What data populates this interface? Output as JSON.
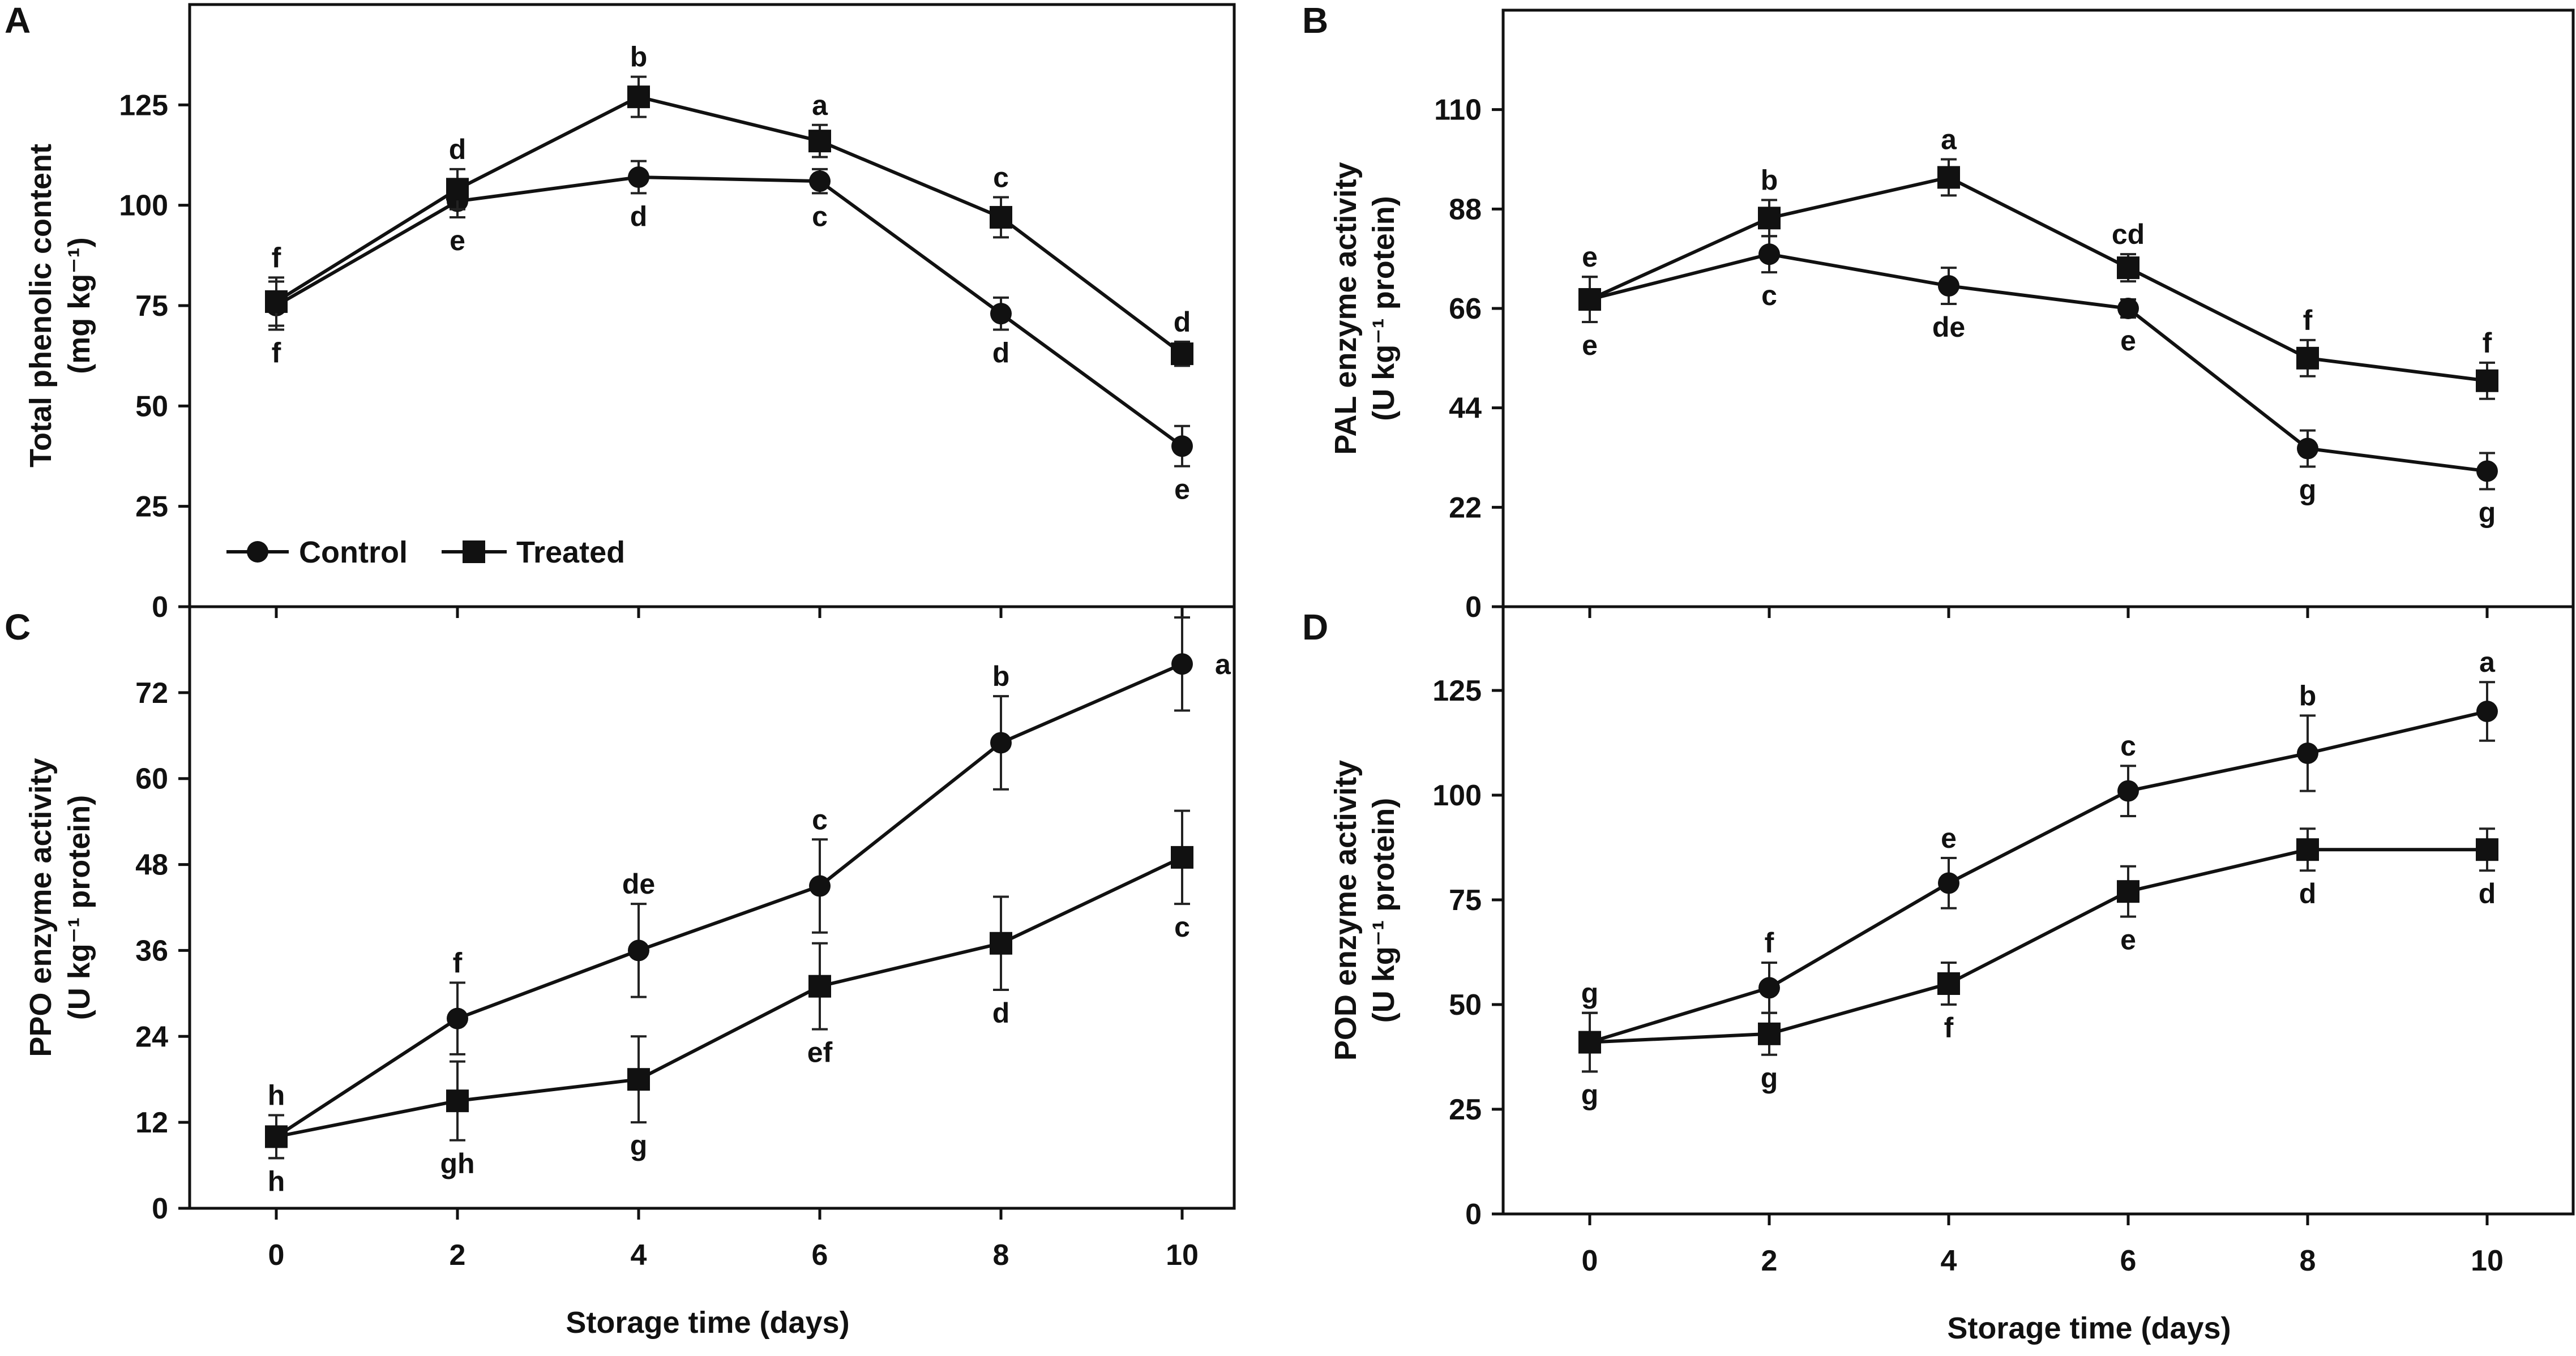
{
  "figure": {
    "xlabel": "Storage time (days)",
    "legend": {
      "control": "Control",
      "treated": "Treated"
    }
  },
  "chart_data": [
    {
      "panel": "A",
      "type": "line",
      "x": [
        0,
        2,
        4,
        6,
        8,
        10
      ],
      "xticks": [
        "0",
        "2",
        "4",
        "6",
        "8",
        "10"
      ],
      "ylabel_line1": "Total phenolic content",
      "ylabel_line2": "(mg kg⁻¹)",
      "ylim": [
        0,
        150
      ],
      "yticks": [
        0,
        25,
        50,
        75,
        100,
        125
      ],
      "ytick_labels": [
        "0",
        "25",
        "50",
        "75",
        "100",
        "125"
      ],
      "show_xticks": false,
      "legend_position": "bottom-left",
      "series": [
        {
          "name": "Control",
          "marker": "circle",
          "values": [
            75,
            101,
            107,
            106,
            73,
            40
          ],
          "errors": [
            6,
            4,
            4,
            3,
            4,
            5
          ],
          "letters": [
            "f",
            "e",
            "d",
            "c",
            "d",
            "e"
          ],
          "letter_pos": [
            "below",
            "below",
            "below",
            "below",
            "below",
            "below"
          ]
        },
        {
          "name": "Treated",
          "marker": "square",
          "values": [
            76,
            104,
            127,
            116,
            97,
            63
          ],
          "errors": [
            6,
            5,
            5,
            4,
            5,
            3
          ],
          "letters": [
            "f",
            "d",
            "b",
            "a",
            "c",
            "d"
          ],
          "letter_pos": [
            "above",
            "above",
            "above",
            "above",
            "above",
            "above"
          ]
        }
      ]
    },
    {
      "panel": "B",
      "type": "line",
      "x": [
        0,
        2,
        4,
        6,
        8,
        10
      ],
      "xticks": [
        "0",
        "2",
        "4",
        "6",
        "8",
        "10"
      ],
      "ylabel_line1": "PAL enzyme activity",
      "ylabel_line2": "(U kg⁻¹ protein)",
      "ylim": [
        0,
        132
      ],
      "yticks": [
        0,
        22,
        44,
        66,
        88,
        110
      ],
      "ytick_labels": [
        "0",
        "22",
        "44",
        "66",
        "88",
        "110"
      ],
      "show_xticks": false,
      "series": [
        {
          "name": "Control",
          "marker": "circle",
          "values": [
            68,
            78,
            71,
            66,
            35,
            30
          ],
          "errors": [
            5,
            4,
            4,
            2,
            4,
            4
          ],
          "letters": [
            "e",
            "c",
            "de",
            "e",
            "g",
            "g"
          ],
          "letter_pos": [
            "below",
            "below",
            "below",
            "below",
            "below",
            "below"
          ]
        },
        {
          "name": "Treated",
          "marker": "square",
          "values": [
            68,
            86,
            95,
            75,
            55,
            50
          ],
          "errors": [
            5,
            4,
            4,
            3,
            4,
            4
          ],
          "letters": [
            "e",
            "b",
            "a",
            "cd",
            "f",
            "f"
          ],
          "letter_pos": [
            "above",
            "above",
            "above",
            "above",
            "above",
            "above"
          ]
        }
      ]
    },
    {
      "panel": "C",
      "type": "line",
      "x": [
        0,
        2,
        4,
        6,
        8,
        10
      ],
      "xticks": [
        "0",
        "2",
        "4",
        "6",
        "8",
        "10"
      ],
      "ylabel_line1": "PPO enzyme activity",
      "ylabel_line2": "(U kg⁻¹ protein)",
      "ylim": [
        0,
        84
      ],
      "yticks": [
        0,
        12,
        24,
        36,
        48,
        60,
        72
      ],
      "ytick_labels": [
        "0",
        "12",
        "24",
        "36",
        "48",
        "60",
        "72"
      ],
      "show_xticks": true,
      "series": [
        {
          "name": "Control",
          "marker": "circle",
          "values": [
            10,
            26.5,
            36,
            45,
            65,
            76
          ],
          "errors": [
            3,
            5,
            6.5,
            6.5,
            6.5,
            6.5
          ],
          "letters": [
            "h",
            "f",
            "de",
            "c",
            "b",
            "a"
          ],
          "letter_pos": [
            "above",
            "above",
            "above",
            "above",
            "above",
            "right"
          ]
        },
        {
          "name": "Treated",
          "marker": "square",
          "values": [
            10,
            15,
            18,
            31,
            37,
            49
          ],
          "errors": [
            3,
            5.5,
            6,
            6,
            6.5,
            6.5
          ],
          "letters": [
            "h",
            "gh",
            "g",
            "ef",
            "d",
            "c"
          ],
          "letter_pos": [
            "below",
            "below",
            "below",
            "below",
            "below",
            "below"
          ]
        }
      ]
    },
    {
      "panel": "D",
      "type": "line",
      "x": [
        0,
        2,
        4,
        6,
        8,
        10
      ],
      "xticks": [
        "0",
        "2",
        "4",
        "6",
        "8",
        "10"
      ],
      "ylabel_line1": "POD enzyme activity",
      "ylabel_line2": "(U kg⁻¹ protein)",
      "ylim": [
        0,
        145
      ],
      "yticks": [
        0,
        25,
        50,
        75,
        100,
        125
      ],
      "ytick_labels": [
        "0",
        "25",
        "50",
        "75",
        "100",
        "125"
      ],
      "show_xticks": true,
      "series": [
        {
          "name": "Control",
          "marker": "circle",
          "values": [
            41,
            54,
            79,
            101,
            110,
            120
          ],
          "errors": [
            7,
            6,
            6,
            6,
            9,
            7
          ],
          "letters": [
            "g",
            "f",
            "e",
            "c",
            "b",
            "a"
          ],
          "letter_pos": [
            "above",
            "above",
            "above",
            "above",
            "above",
            "above"
          ]
        },
        {
          "name": "Treated",
          "marker": "square",
          "values": [
            41,
            43,
            55,
            77,
            87,
            87
          ],
          "errors": [
            7,
            5,
            5,
            6,
            5,
            5
          ],
          "letters": [
            "g",
            "g",
            "f",
            "e",
            "d",
            "d"
          ],
          "letter_pos": [
            "below",
            "below",
            "below",
            "below",
            "below",
            "below"
          ]
        }
      ]
    }
  ]
}
